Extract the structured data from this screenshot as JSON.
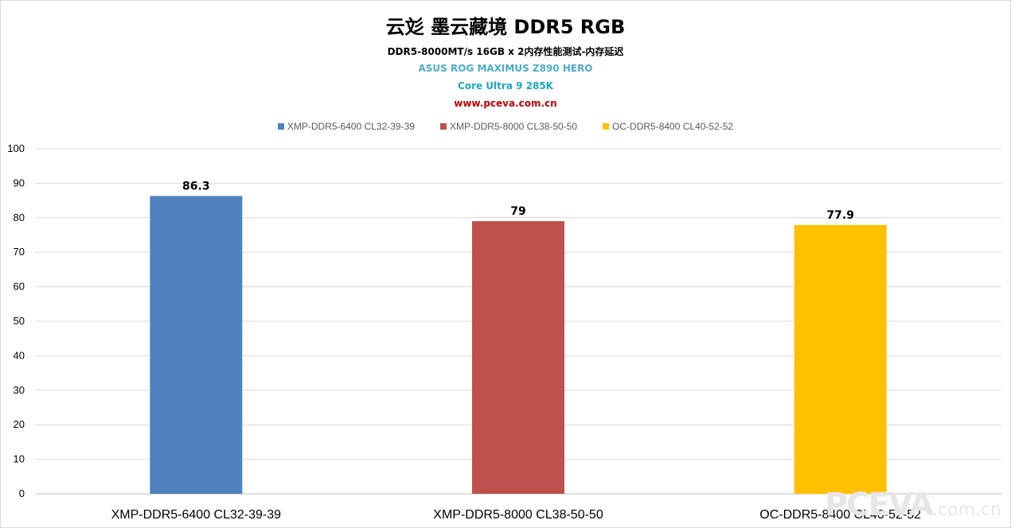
{
  "chart_data": {
    "type": "bar",
    "title": "云彣 墨云藏境 DDR5 RGB",
    "subtitles": [
      "DDR5-8000MT/s 16GB x 2内存性能测试-内存延迟",
      "ASUS ROG MAXIMUS Z890 HERO",
      "Core Ultra 9 285K",
      "www.pceva.com.cn"
    ],
    "categories": [
      "XMP-DDR5-6400 CL32-39-39",
      "XMP-DDR5-8000 CL38-50-50",
      "OC-DDR5-8400 CL40-52-52"
    ],
    "values": [
      86.3,
      79,
      77.9
    ],
    "value_labels": [
      "86.3",
      "79",
      "77.9"
    ],
    "colors": [
      "#4f81bd",
      "#c0504d",
      "#ffc000"
    ],
    "legend": [
      "XMP-DDR5-6400 CL32-39-39",
      "XMP-DDR5-8000 CL38-50-50",
      "OC-DDR5-8400 CL40-52-52"
    ],
    "legend_position": "top",
    "ylim": [
      0,
      100
    ],
    "yticks": [
      "0",
      "10",
      "20",
      "30",
      "40",
      "50",
      "60",
      "70",
      "80",
      "90",
      "100"
    ],
    "grid": true
  },
  "subtitle_colors": [
    "#000000",
    "#4bacc6",
    "#17a8c6",
    "#c00000"
  ],
  "watermark": {
    "brand": "PCEVA",
    "suffix": ".com.cn"
  }
}
